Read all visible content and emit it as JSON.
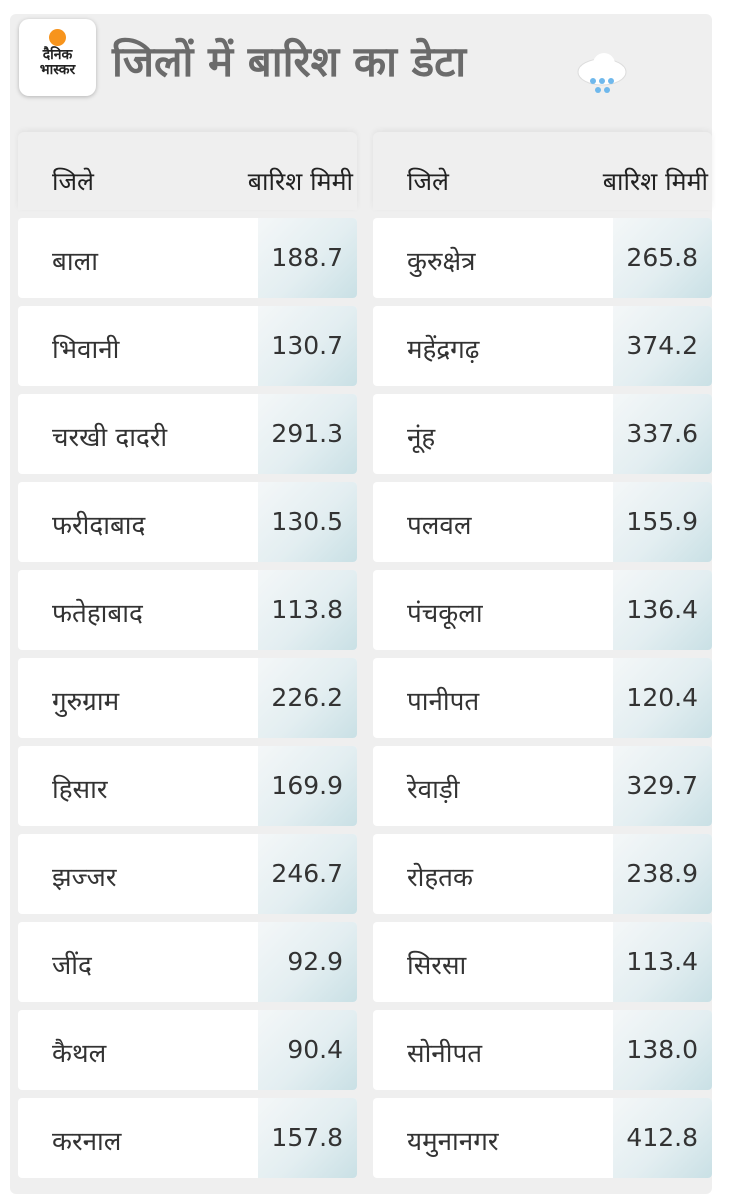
{
  "header": {
    "logo_text": [
      "दैनिक",
      "भास्कर"
    ],
    "title": "जिलों में बारिश का डेटा",
    "icon": "rain-cloud-icon"
  },
  "columns": {
    "district": "जिले",
    "rain": "बारिश मिमी"
  },
  "left": [
    {
      "name": "बाला",
      "value": "188.7"
    },
    {
      "name": "भिवानी",
      "value": "130.7"
    },
    {
      "name": "चरखी दादरी",
      "value": "291.3"
    },
    {
      "name": "फरीदाबाद",
      "value": "130.5"
    },
    {
      "name": "फतेहाबाद",
      "value": "113.8"
    },
    {
      "name": "गुरुग्राम",
      "value": "226.2"
    },
    {
      "name": "हिसार",
      "value": "169.9"
    },
    {
      "name": "झज्जर",
      "value": "246.7"
    },
    {
      "name": "जींद",
      "value": "92.9"
    },
    {
      "name": "कैथल",
      "value": "90.4"
    },
    {
      "name": "करनाल",
      "value": "157.8"
    }
  ],
  "right": [
    {
      "name": "कुरुक्षेत्र",
      "value": "265.8"
    },
    {
      "name": "महेंद्रगढ़",
      "value": "374.2"
    },
    {
      "name": "नूंह",
      "value": "337.6"
    },
    {
      "name": "पलवल",
      "value": "155.9"
    },
    {
      "name": "पंचकूला",
      "value": "136.4"
    },
    {
      "name": "पानीपत",
      "value": "120.4"
    },
    {
      "name": "रेवाड़ी",
      "value": "329.7"
    },
    {
      "name": "रोहतक",
      "value": "238.9"
    },
    {
      "name": "सिरसा",
      "value": "113.4"
    },
    {
      "name": "सोनीपत",
      "value": "138.0"
    },
    {
      "name": "यमुनानगर",
      "value": "412.8"
    }
  ]
}
